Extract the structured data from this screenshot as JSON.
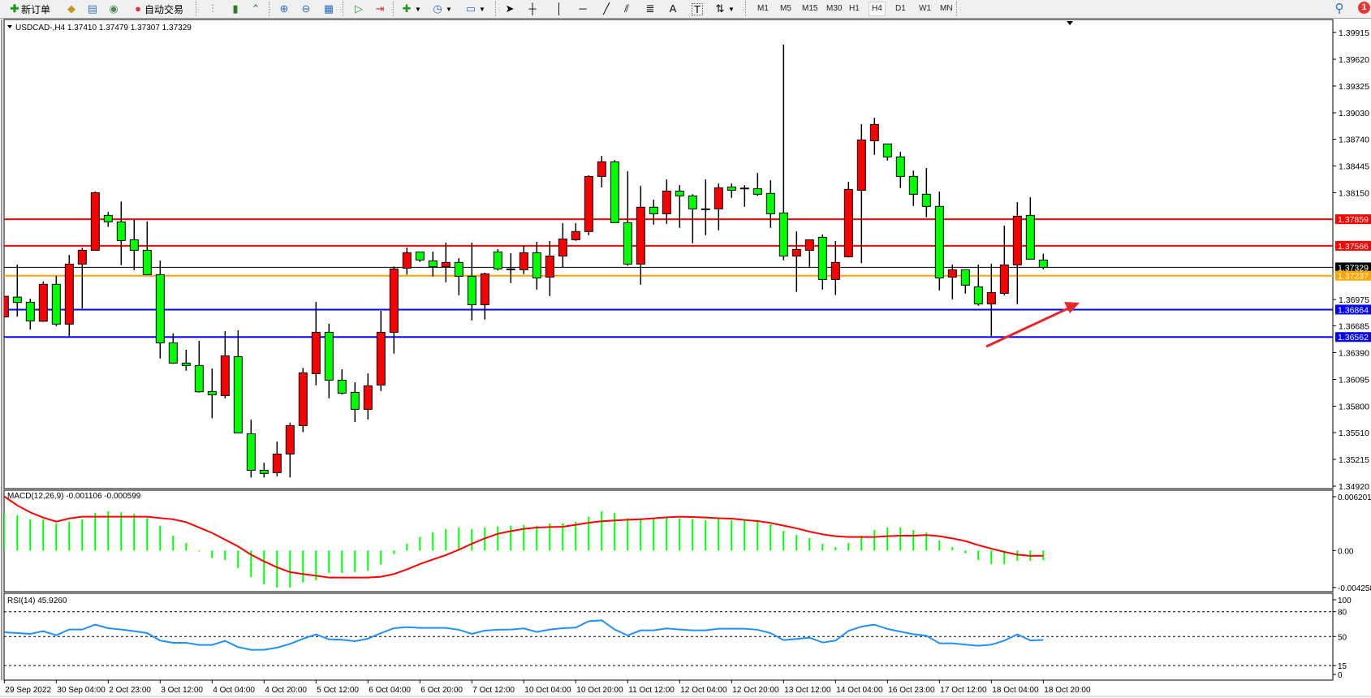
{
  "toolbar": {
    "new_order_label": "新订单",
    "auto_trading_label": "自动交易",
    "icons": [
      "new-order-icon",
      "market-watch-icon",
      "navigator-icon",
      "signals-icon",
      "auto-trading-icon",
      "bar-chart-icon",
      "candlestick-icon",
      "line-chart-icon",
      "zoom-in-icon",
      "zoom-out-icon",
      "tile-windows-icon",
      "auto-scroll-icon",
      "chart-shift-icon",
      "indicators-icon",
      "periods-icon",
      "templates-icon",
      "cursor-icon",
      "crosshair-icon",
      "vertical-line-icon",
      "horizontal-line-icon",
      "trendline-icon",
      "equidistant-channel-icon",
      "fibonacci-icon",
      "text-icon",
      "text-label-icon",
      "arrows-icon",
      "search-icon",
      "notifications-icon"
    ],
    "timeframes": [
      "M1",
      "M5",
      "M15",
      "M30",
      "H1",
      "H4",
      "D1",
      "W1",
      "MN"
    ],
    "selected_timeframe": "H4",
    "text_tool_label": "A",
    "text_label_tool": "T",
    "notification_count": "1"
  },
  "chart": {
    "title": "USDCAD-,H4  1.37410 1.37479 1.37307 1.37329",
    "colors": {
      "bull": "#ff0000",
      "bear": "#00ff00",
      "outline": "#000000",
      "macd_hist": "#00ff00",
      "macd_signal": "#ff0000",
      "rsi": "#1e90ff"
    },
    "price_axis": [
      "1.39915",
      "1.39620",
      "1.39325",
      "1.39030",
      "1.38740",
      "1.38445",
      "1.38150",
      "1.36975",
      "1.36685",
      "1.36390",
      "1.36095",
      "1.35800",
      "1.35510",
      "1.35215",
      "1.34920"
    ],
    "price_range": [
      1.3492,
      1.39915
    ],
    "horizontal_lines": [
      {
        "price": 1.37859,
        "label": "1.37859",
        "color": "#ff0000"
      },
      {
        "price": 1.37566,
        "label": "1.37566",
        "color": "#ff0000"
      },
      {
        "price": 1.37329,
        "label": "1.37329",
        "color": "#000000",
        "kind": "bid"
      },
      {
        "price": 1.37237,
        "label": "1.37237",
        "color": "#ffa500"
      },
      {
        "price": 1.36864,
        "label": "1.36864",
        "color": "#0000ff"
      },
      {
        "price": 1.36562,
        "label": "1.36562",
        "color": "#0000ff"
      }
    ],
    "candles_ohlc": [
      [
        1.36784,
        1.3701,
        1.36784,
        1.3701
      ],
      [
        1.37001,
        1.37359,
        1.36787,
        1.36942
      ],
      [
        1.36945,
        1.36984,
        1.36644,
        1.3674
      ],
      [
        1.36736,
        1.37174,
        1.36727,
        1.37142
      ],
      [
        1.37142,
        1.37234,
        1.36682,
        1.36704
      ],
      [
        1.36704,
        1.37466,
        1.36572,
        1.37365
      ],
      [
        1.37365,
        1.37544,
        1.36876,
        1.37517
      ],
      [
        1.37517,
        1.38163,
        1.37517,
        1.38151
      ],
      [
        1.37901,
        1.3794,
        1.37776,
        1.3783
      ],
      [
        1.3783,
        1.38053,
        1.37353,
        1.37624
      ],
      [
        1.37633,
        1.37859,
        1.37299,
        1.37517
      ],
      [
        1.37517,
        1.37835,
        1.37249,
        1.37249
      ],
      [
        1.37249,
        1.37404,
        1.36325,
        1.36498
      ],
      [
        1.36498,
        1.36602,
        1.36266,
        1.36275
      ],
      [
        1.36275,
        1.36421,
        1.36191,
        1.36248
      ],
      [
        1.36248,
        1.36519,
        1.3595,
        1.35959
      ],
      [
        1.35962,
        1.36215,
        1.35667,
        1.35926
      ],
      [
        1.35917,
        1.36626,
        1.35887,
        1.36355
      ],
      [
        1.36346,
        1.36635,
        1.35506,
        1.35506
      ],
      [
        1.35497,
        1.35652,
        1.35015,
        1.35095
      ],
      [
        1.35095,
        1.35178,
        1.35015,
        1.3506
      ],
      [
        1.35069,
        1.35411,
        1.35029,
        1.35274
      ],
      [
        1.35274,
        1.35619,
        1.35015,
        1.35587
      ],
      [
        1.35587,
        1.36221,
        1.35515,
        1.36168
      ],
      [
        1.36159,
        1.36948,
        1.3603,
        1.36614
      ],
      [
        1.36614,
        1.36707,
        1.35887,
        1.36087
      ],
      [
        1.36087,
        1.36206,
        1.3593,
        1.35944
      ],
      [
        1.35953,
        1.36063,
        1.35625,
        1.35766
      ],
      [
        1.35766,
        1.36161,
        1.35655,
        1.36025
      ],
      [
        1.36034,
        1.3685,
        1.35967,
        1.36614
      ],
      [
        1.36614,
        1.37338,
        1.36379,
        1.37312
      ],
      [
        1.3732,
        1.37547,
        1.37249,
        1.3749
      ],
      [
        1.37499,
        1.37502,
        1.37388,
        1.3741
      ],
      [
        1.37401,
        1.37502,
        1.37228,
        1.37335
      ],
      [
        1.37335,
        1.376,
        1.37165,
        1.37383
      ],
      [
        1.37383,
        1.3743,
        1.37022,
        1.37231
      ],
      [
        1.37231,
        1.376,
        1.36745,
        1.36918
      ],
      [
        1.36918,
        1.3727,
        1.36754,
        1.37258
      ],
      [
        1.37499,
        1.37529,
        1.37294,
        1.37312
      ],
      [
        1.37312,
        1.37484,
        1.37156,
        1.37303
      ],
      [
        1.37303,
        1.37567,
        1.37254,
        1.3749
      ],
      [
        1.3749,
        1.37609,
        1.37085,
        1.37213
      ],
      [
        1.37222,
        1.37618,
        1.37013,
        1.37454
      ],
      [
        1.37454,
        1.37815,
        1.37329,
        1.37642
      ],
      [
        1.37633,
        1.37815,
        1.37621,
        1.37723
      ],
      [
        1.37723,
        1.38342,
        1.37683,
        1.3833
      ],
      [
        1.3833,
        1.38556,
        1.3821,
        1.38491
      ],
      [
        1.38491,
        1.38509,
        1.37821,
        1.37821
      ],
      [
        1.37821,
        1.38387,
        1.37347,
        1.37365
      ],
      [
        1.37365,
        1.38226,
        1.37138,
        1.37991
      ],
      [
        1.37991,
        1.38074,
        1.37799,
        1.37919
      ],
      [
        1.37919,
        1.38297,
        1.37808,
        1.38169
      ],
      [
        1.38169,
        1.38235,
        1.37764,
        1.38116
      ],
      [
        1.38116,
        1.38134,
        1.37594,
        1.37973
      ],
      [
        1.37973,
        1.38297,
        1.37683,
        1.3797
      ],
      [
        1.37973,
        1.38252,
        1.37737,
        1.38205
      ],
      [
        1.38214,
        1.38252,
        1.38094,
        1.38178
      ],
      [
        1.38202,
        1.38235,
        1.37996,
        1.38196
      ],
      [
        1.38196,
        1.38369,
        1.38116,
        1.38134
      ],
      [
        1.38143,
        1.38288,
        1.37764,
        1.37919
      ],
      [
        1.37928,
        1.39781,
        1.37406,
        1.37454
      ],
      [
        1.37454,
        1.37725,
        1.37058,
        1.37526
      ],
      [
        1.37517,
        1.37633,
        1.37335,
        1.37633
      ],
      [
        1.3766,
        1.37692,
        1.37085,
        1.37195
      ],
      [
        1.37195,
        1.37618,
        1.37025,
        1.37383
      ],
      [
        1.37446,
        1.3827,
        1.37437,
        1.38187
      ],
      [
        1.38178,
        1.38905,
        1.37374,
        1.38732
      ],
      [
        1.38723,
        1.38976,
        1.38568,
        1.38902
      ],
      [
        1.38688,
        1.38688,
        1.38505,
        1.38545
      ],
      [
        1.38545,
        1.38601,
        1.38202,
        1.3833
      ],
      [
        1.3833,
        1.38395,
        1.38005,
        1.38134
      ],
      [
        1.38134,
        1.38422,
        1.3788,
        1.38
      ],
      [
        1.38,
        1.38163,
        1.37076,
        1.37213
      ],
      [
        1.37222,
        1.37359,
        1.36977,
        1.37303
      ],
      [
        1.37303,
        1.37303,
        1.3704,
        1.37133
      ],
      [
        1.37115,
        1.37359,
        1.36906,
        1.36927
      ],
      [
        1.36927,
        1.37368,
        1.36572,
        1.37052
      ],
      [
        1.37043,
        1.37788,
        1.37022,
        1.37356
      ],
      [
        1.37356,
        1.38047,
        1.36924,
        1.37892
      ],
      [
        1.37901,
        1.38101,
        1.37419,
        1.37419
      ],
      [
        1.3741,
        1.37479,
        1.37307,
        1.37329
      ]
    ],
    "time_labels": [
      "29 Sep 2022",
      "30 Sep 04:00",
      "2 Oct 23:00",
      "3 Oct 12:00",
      "4 Oct 04:00",
      "4 Oct 20:00",
      "5 Oct 12:00",
      "6 Oct 04:00",
      "6 Oct 20:00",
      "7 Oct 12:00",
      "10 Oct 04:00",
      "10 Oct 20:00",
      "11 Oct 12:00",
      "12 Oct 04:00",
      "12 Oct 20:00",
      "13 Oct 12:00",
      "14 Oct 04:00",
      "16 Oct 23:00",
      "17 Oct 12:00",
      "18 Oct 04:00",
      "18 Oct 20:00"
    ]
  },
  "macd": {
    "title": "MACD(12,26,9) -0.001106 -0.000599",
    "axis": [
      "0.006201",
      "0.00",
      "-0.004258"
    ],
    "range": [
      -0.004258,
      0.006201
    ],
    "histogram": [
      0.00436,
      0.00408,
      0.00358,
      0.00358,
      0.00312,
      0.00333,
      0.00358,
      0.00433,
      0.00452,
      0.00442,
      0.00421,
      0.00374,
      0.00287,
      0.00171,
      0.00087,
      -0.0001,
      -0.00087,
      -0.00109,
      -0.00203,
      -0.00305,
      -0.0039,
      -0.00427,
      -0.00427,
      -0.00368,
      -0.00343,
      -0.00259,
      -0.00259,
      -0.00249,
      -0.00234,
      -0.00162,
      -0.00041,
      0.00078,
      0.00156,
      0.00212,
      0.00249,
      0.00265,
      0.00249,
      0.00265,
      0.00277,
      0.00287,
      0.00296,
      0.00287,
      0.00312,
      0.00312,
      0.00333,
      0.0039,
      0.00452,
      0.00433,
      0.00374,
      0.00374,
      0.00371,
      0.00377,
      0.00371,
      0.00365,
      0.00349,
      0.00365,
      0.00349,
      0.00349,
      0.00333,
      0.00302,
      0.00227,
      0.00181,
      0.00143,
      0.00078,
      0.00041,
      0.00087,
      0.00171,
      0.00237,
      0.00265,
      0.00265,
      0.00237,
      0.00209,
      0.00115,
      0.00041,
      -0.00031,
      -0.00109,
      -0.00156,
      -0.00156,
      -0.00118,
      -0.00118,
      -0.00111
    ],
    "signal": [
      0.00623,
      0.0052,
      0.0044,
      0.0038,
      0.00333,
      0.0037,
      0.0039,
      0.0039,
      0.0039,
      0.0039,
      0.0039,
      0.0039,
      0.00374,
      0.0036,
      0.00327,
      0.00265,
      0.00203,
      0.00125,
      0.00047,
      -0.00047,
      -0.00125,
      -0.00193,
      -0.00249,
      -0.00271,
      -0.0029,
      -0.00312,
      -0.00312,
      -0.00312,
      -0.00312,
      -0.00302,
      -0.00271,
      -0.00218,
      -0.00156,
      -0.00103,
      -0.00053,
      9e-05,
      0.00078,
      0.0014,
      0.00193,
      0.00224,
      0.00249,
      0.00265,
      0.00271,
      0.00274,
      0.00296,
      0.00321,
      0.00337,
      0.00346,
      0.00355,
      0.00361,
      0.00371,
      0.00383,
      0.0039,
      0.00386,
      0.0038,
      0.00372,
      0.00368,
      0.00352,
      0.0034,
      0.00318,
      0.00287,
      0.00256,
      0.00218,
      0.00187,
      0.00165,
      0.00156,
      0.00156,
      0.00156,
      0.00165,
      0.00171,
      0.00171,
      0.00178,
      0.00165,
      0.0014,
      0.00109,
      0.00062,
      0.00022,
      -0.00016,
      -0.00047,
      -0.00062,
      -0.0006
    ]
  },
  "rsi": {
    "title": "RSI(14) 45.9260",
    "axis": [
      "100",
      "80",
      "50",
      "15",
      "0"
    ],
    "levels": [
      80,
      50,
      15
    ],
    "values": [
      55.2,
      54.2,
      53.3,
      56.5,
      51.6,
      58.5,
      58.5,
      64.4,
      60.1,
      58.5,
      56.5,
      54.2,
      45.1,
      42.5,
      42.5,
      39.9,
      39.9,
      44.8,
      37.3,
      34.0,
      34.0,
      36.6,
      41.2,
      47.4,
      52.6,
      46.7,
      46.1,
      44.4,
      47.4,
      54.2,
      60.1,
      61.4,
      60.5,
      60.5,
      60.5,
      58.2,
      53.3,
      57.2,
      58.2,
      58.5,
      59.8,
      55.6,
      58.5,
      60.1,
      60.8,
      68.6,
      69.6,
      58.5,
      51.3,
      57.5,
      57.5,
      59.8,
      58.5,
      57.5,
      57.5,
      59.5,
      59.5,
      59.5,
      58.2,
      54.2,
      45.8,
      47.1,
      48.7,
      42.8,
      45.1,
      56.9,
      62.1,
      64.4,
      59.2,
      55.9,
      52.9,
      51.0,
      41.8,
      41.8,
      40.2,
      38.9,
      40.2,
      45.1,
      52.6,
      45.4,
      45.9
    ]
  }
}
